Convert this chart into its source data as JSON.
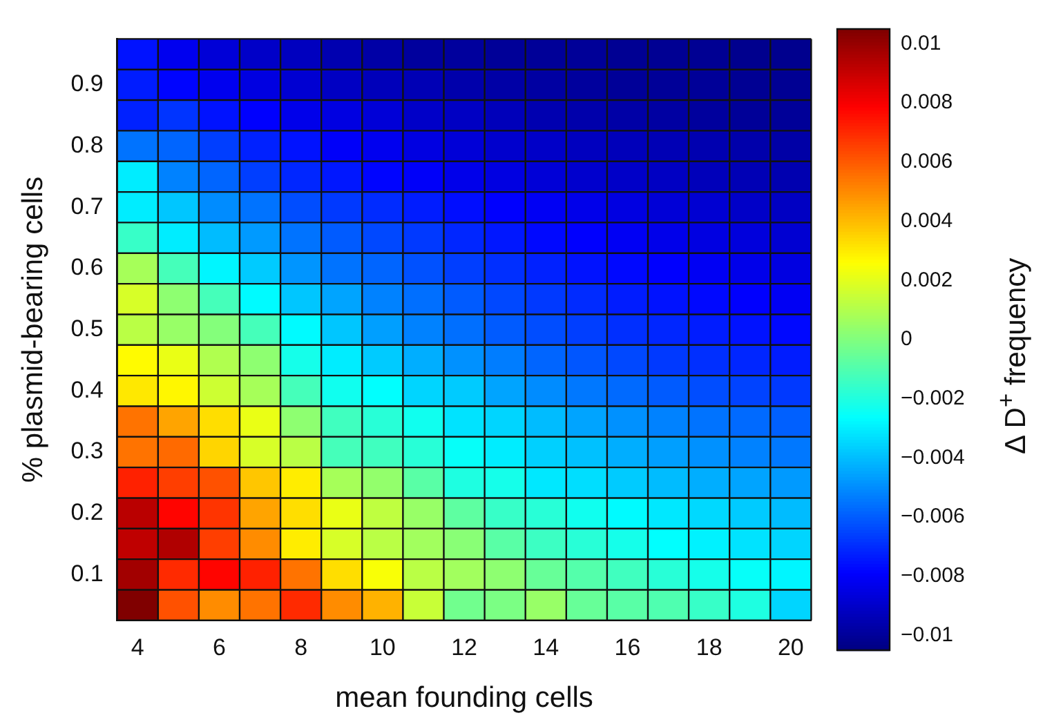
{
  "chart_data": {
    "type": "heatmap",
    "xlabel": "mean founding cells",
    "ylabel": "% plasmid-bearing cells",
    "clabel": "Δ D$^{+}$ frequency",
    "categories": [
      "4",
      null,
      "6",
      null,
      "8",
      null,
      "10",
      null,
      "12",
      null,
      "14",
      null,
      "16",
      null,
      "18",
      null,
      "20"
    ],
    "y_categories": [
      null,
      "0.9",
      null,
      "0.8",
      null,
      "0.7",
      null,
      "0.6",
      null,
      "0.5",
      null,
      "0.4",
      null,
      "0.3",
      null,
      "0.2",
      null,
      "0.1",
      null
    ],
    "clim": [
      -0.0105,
      0.0105
    ],
    "cticks": [
      -0.01,
      -0.008,
      -0.006,
      -0.004,
      -0.002,
      0,
      0.002,
      0.004,
      0.006,
      0.008,
      0.01
    ],
    "cells": [
      [
        -0.0075,
        -0.0082,
        -0.0087,
        -0.009,
        -0.0092,
        -0.0095,
        -0.0097,
        -0.0099,
        -0.0099,
        -0.01,
        -0.01,
        -0.01,
        -0.0101,
        -0.0101,
        -0.0101,
        -0.0102,
        -0.0102
      ],
      [
        -0.0073,
        -0.0078,
        -0.0082,
        -0.0085,
        -0.0088,
        -0.0091,
        -0.0093,
        -0.0094,
        -0.0096,
        -0.0097,
        -0.0098,
        -0.0099,
        -0.01,
        -0.01,
        -0.01,
        -0.0101,
        -0.0101
      ],
      [
        -0.0072,
        -0.0068,
        -0.0075,
        -0.0079,
        -0.0083,
        -0.0085,
        -0.0087,
        -0.009,
        -0.0091,
        -0.0093,
        -0.0095,
        -0.0096,
        -0.0097,
        -0.0098,
        -0.0099,
        -0.01,
        -0.01
      ],
      [
        -0.0055,
        -0.0058,
        -0.0066,
        -0.0072,
        -0.0075,
        -0.008,
        -0.0082,
        -0.0085,
        -0.0087,
        -0.0089,
        -0.009,
        -0.0092,
        -0.0093,
        -0.0094,
        -0.0095,
        -0.0096,
        -0.0097
      ],
      [
        -0.003,
        -0.0052,
        -0.0058,
        -0.0066,
        -0.0071,
        -0.0074,
        -0.0078,
        -0.008,
        -0.0083,
        -0.0085,
        -0.0087,
        -0.0089,
        -0.009,
        -0.0091,
        -0.0093,
        -0.0094,
        -0.0095
      ],
      [
        -0.003,
        -0.0038,
        -0.005,
        -0.0055,
        -0.0063,
        -0.0067,
        -0.007,
        -0.0073,
        -0.0076,
        -0.0079,
        -0.0081,
        -0.0083,
        -0.0085,
        -0.0087,
        -0.0088,
        -0.009,
        -0.0091
      ],
      [
        -0.0015,
        -0.003,
        -0.004,
        -0.0047,
        -0.0055,
        -0.006,
        -0.0064,
        -0.0067,
        -0.0071,
        -0.0074,
        -0.0077,
        -0.0079,
        -0.0081,
        -0.0083,
        -0.0085,
        -0.0086,
        -0.0088
      ],
      [
        0.0008,
        -0.0012,
        -0.0028,
        -0.0037,
        -0.0048,
        -0.0055,
        -0.0058,
        -0.0062,
        -0.0066,
        -0.0069,
        -0.0072,
        -0.0075,
        -0.0077,
        -0.0079,
        -0.0081,
        -0.0083,
        -0.0085
      ],
      [
        0.0018,
        0.0003,
        -0.0012,
        -0.0027,
        -0.0038,
        -0.0045,
        -0.0052,
        -0.0056,
        -0.006,
        -0.0064,
        -0.0067,
        -0.007,
        -0.0073,
        -0.0075,
        -0.0077,
        -0.0079,
        -0.0081
      ],
      [
        0.0012,
        0.0005,
        0.0001,
        -0.0012,
        -0.0027,
        -0.0038,
        -0.0046,
        -0.0052,
        -0.0056,
        -0.006,
        -0.0063,
        -0.0066,
        -0.0069,
        -0.0071,
        -0.0073,
        -0.0075,
        -0.0077
      ],
      [
        0.0027,
        0.0022,
        0.001,
        0.0003,
        -0.0022,
        -0.003,
        -0.0037,
        -0.0043,
        -0.0049,
        -0.0053,
        -0.0058,
        -0.0061,
        -0.0064,
        -0.0067,
        -0.0069,
        -0.0071,
        -0.0073
      ],
      [
        0.0031,
        0.0028,
        0.0016,
        0.0008,
        -0.0012,
        -0.0023,
        -0.0026,
        -0.0035,
        -0.0037,
        -0.0045,
        -0.005,
        -0.0054,
        -0.0057,
        -0.006,
        -0.0063,
        -0.0065,
        -0.0067
      ],
      [
        0.0055,
        0.0045,
        0.0033,
        0.0022,
        0.0003,
        -0.0013,
        -0.0018,
        -0.0023,
        -0.0032,
        -0.0035,
        -0.004,
        -0.0045,
        -0.0049,
        -0.0052,
        -0.0055,
        -0.0057,
        -0.0059
      ],
      [
        0.0055,
        0.0057,
        0.0035,
        0.0018,
        0.0012,
        -0.0012,
        -0.0013,
        -0.0018,
        -0.0025,
        -0.003,
        -0.0036,
        -0.0039,
        -0.0043,
        -0.0046,
        -0.0049,
        -0.0052,
        -0.0054
      ],
      [
        0.0072,
        0.0066,
        0.0062,
        0.0038,
        0.003,
        0.0008,
        0.0004,
        -0.0008,
        -0.002,
        -0.0022,
        -0.0031,
        -0.0033,
        -0.0037,
        -0.004,
        -0.0043,
        -0.0045,
        -0.0047
      ],
      [
        0.0093,
        0.0078,
        0.0068,
        0.0045,
        0.0033,
        0.0022,
        0.0013,
        0.0005,
        -0.0007,
        -0.0015,
        -0.0018,
        -0.0023,
        -0.0027,
        -0.0031,
        -0.0034,
        -0.0037,
        -0.004
      ],
      [
        0.0092,
        0.0095,
        0.0066,
        0.005,
        0.003,
        0.0018,
        0.0012,
        0.0007,
        0.0002,
        -0.0008,
        -0.0014,
        -0.0018,
        -0.0022,
        -0.0026,
        -0.0029,
        -0.0032,
        -0.0035
      ],
      [
        0.0098,
        0.007,
        0.0078,
        0.0072,
        0.0055,
        0.0033,
        0.0025,
        0.0012,
        0.0007,
        0.0003,
        -0.0005,
        -0.0009,
        -0.0013,
        -0.0018,
        -0.0022,
        -0.0025,
        -0.0028
      ],
      [
        0.0105,
        0.0062,
        0.005,
        0.0055,
        0.007,
        0.005,
        0.0042,
        0.0015,
        -0.0003,
        -0.0001,
        0.0005,
        -0.0005,
        -0.0008,
        -0.001,
        -0.0015,
        -0.002,
        -0.0035
      ]
    ]
  }
}
